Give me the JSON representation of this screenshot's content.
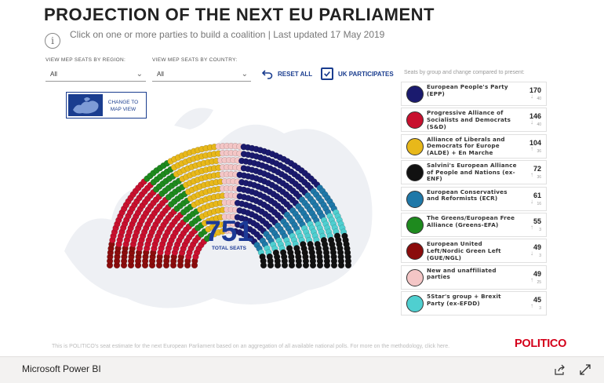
{
  "header": {
    "title": "PROJECTION OF THE NEXT EU PARLIAMENT",
    "subtitle": "Click on one or more parties to build a coalition | Last updated 17 May 2019",
    "info_symbol": "i"
  },
  "filters": {
    "region_label": "VIEW MEP SEATS BY REGION:",
    "region_value": "All",
    "country_label": "VIEW MEP SEATS BY COUNTRY:",
    "country_value": "All",
    "reset_label": "RESET ALL",
    "uk_label": "UK PARTICIPATES",
    "uk_checked": true
  },
  "seats_caption": "Seats by group and change compared to present:",
  "map_button": {
    "label_line1": "CHANGE TO",
    "label_line2": "MAP VIEW"
  },
  "total": {
    "value": "751",
    "label": "TOTAL SEATS"
  },
  "chart_data": {
    "type": "hemicycle",
    "total_seats": 751,
    "groups": [
      {
        "name": "European United Left/Nordic Green Left (GUE/NGL)",
        "seats": 49,
        "color": "#8b0c0c"
      },
      {
        "name": "Progressive Alliance of Socialists and Democrats (S&D)",
        "seats": 146,
        "color": "#c8102e"
      },
      {
        "name": "The Greens/European Free Alliance (Greens-EFA)",
        "seats": 55,
        "color": "#1e8a1e"
      },
      {
        "name": "Alliance of Liberals and Democrats for Europe (ALDE) + En Marche",
        "seats": 104,
        "color": "#e8b81a"
      },
      {
        "name": "New and unaffiliated parties",
        "seats": 49,
        "color": "#f4c6c6"
      },
      {
        "name": "European People's Party (EPP)",
        "seats": 170,
        "color": "#1a1a6e"
      },
      {
        "name": "European Conservatives and Reformists (ECR)",
        "seats": 61,
        "color": "#1f78a8"
      },
      {
        "name": "5Star's group + Brexit Party (ex-EFDD)",
        "seats": 45,
        "color": "#4fcfd0"
      },
      {
        "name": "Salvini's European Alliance of People and Nations (ex-ENF)",
        "seats": 72,
        "color": "#111111"
      }
    ]
  },
  "legend": [
    {
      "name": "European People's Party (EPP)",
      "seats": "170",
      "change": "40",
      "arrow": "↓",
      "color": "#1a1a6e"
    },
    {
      "name": "Progressive Alliance of Socialists and Democrats (S&D)",
      "seats": "146",
      "change": "40",
      "arrow": "↓",
      "color": "#c8102e"
    },
    {
      "name": "Alliance of Liberals and Democrats for Europe (ALDE) + En Marche",
      "seats": "104",
      "change": "36",
      "arrow": "↑",
      "color": "#e8b81a"
    },
    {
      "name": "Salvini's European Alliance of People and Nations (ex-ENF)",
      "seats": "72",
      "change": "36",
      "arrow": "↑",
      "color": "#111111"
    },
    {
      "name": "European Conservatives and Reformists (ECR)",
      "seats": "61",
      "change": "16",
      "arrow": "↓",
      "color": "#1f78a8"
    },
    {
      "name": "The Greens/European Free Alliance (Greens-EFA)",
      "seats": "55",
      "change": "3",
      "arrow": "↑",
      "color": "#1e8a1e"
    },
    {
      "name": "European United Left/Nordic Green Left (GUE/NGL)",
      "seats": "49",
      "change": "3",
      "arrow": "↓",
      "color": "#8b0c0c"
    },
    {
      "name": "New and unaffiliated parties",
      "seats": "49",
      "change": "25",
      "arrow": "↑",
      "color": "#f4c6c6"
    },
    {
      "name": "5Star's group + Brexit Party (ex-EFDD)",
      "seats": "45",
      "change": "3",
      "arrow": "↑",
      "color": "#4fcfd0"
    }
  ],
  "footnote": "This is POLITICO's seat estimate for the next European Parliament based on an aggregation of all available national polls. For more on the methodology, click here.",
  "brand": "POLITICO",
  "bottom_bar": {
    "title": "Microsoft Power BI",
    "share_icon": "share-icon",
    "expand_icon": "expand-icon"
  }
}
